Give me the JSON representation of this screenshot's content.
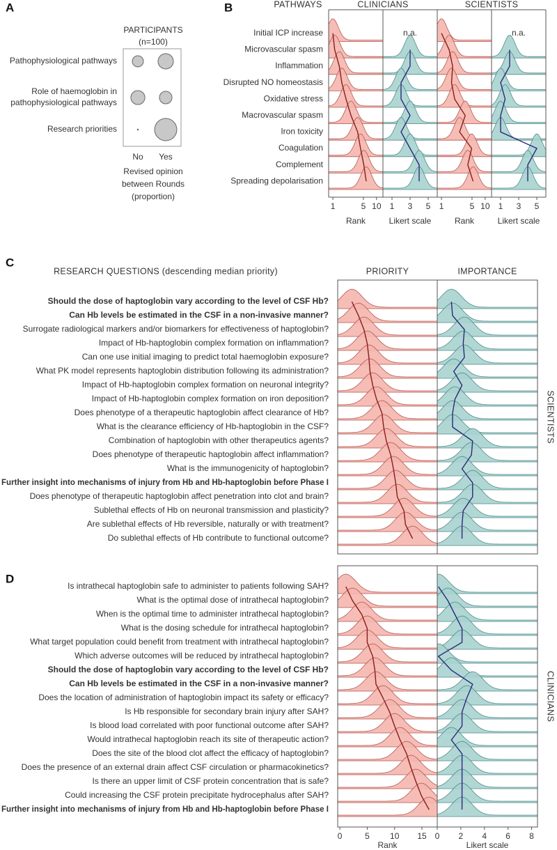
{
  "chart_data": [
    {
      "type": "bubble",
      "label": "A",
      "title": "PARTICIPANTS",
      "subtitle": "(n=100)",
      "categories": [
        "Pathophysiological pathways",
        "Role of haemoglobin in pathophysiological pathways",
        "Research priorities"
      ],
      "series": [
        {
          "name": "No",
          "values": [
            0.22,
            0.35,
            0.002
          ]
        },
        {
          "name": "Yes",
          "values": [
            0.42,
            0.28,
            0.88
          ]
        }
      ],
      "xlabel": "Revised opinion between Rounds (proportion)",
      "color": "#c8c8c8"
    },
    {
      "type": "ridgeline",
      "label": "B",
      "row_header": "PATHWAYS",
      "categories": [
        "Initial ICP increase",
        "Microvascular spasm",
        "Inflammation",
        "Disrupted NO homeostasis",
        "Oxidative stress",
        "Macrovascular spasm",
        "Iron toxicity",
        "Coagulation",
        "Complement",
        "Spreading depolarisation"
      ],
      "groups": [
        {
          "name": "CLINICIANS",
          "panels": [
            {
              "xlabel": "Rank",
              "log_scale": true,
              "xlim": [
                0.8,
                14
              ],
              "xticks": [
                1,
                5,
                10
              ],
              "color": "#f4b6ae",
              "line_color": "#8a1c1c",
              "medians": [
                1,
                1.1,
                1.4,
                1.6,
                2,
                2.6,
                3.7,
                4.3,
                5.1,
                5.8
              ]
            },
            {
              "xlabel": "Likert scale",
              "na_label": "n.a.",
              "xlim": [
                0,
                6
              ],
              "xticks": [
                1,
                3,
                5
              ],
              "color": "#a9d3d0",
              "line_color": "#2a2a78",
              "medians": [
                null,
                3,
                3,
                2,
                2,
                3,
                2,
                3,
                4,
                4
              ]
            }
          ]
        },
        {
          "name": "SCIENTISTS",
          "panels": [
            {
              "xlabel": "Rank",
              "log_scale": true,
              "xlim": [
                0.8,
                14
              ],
              "xticks": [
                1,
                5,
                10
              ],
              "color": "#f4b6ae",
              "line_color": "#8a1c1c",
              "medians": [
                1,
                1.5,
                1.8,
                1.7,
                2,
                3.5,
                2.6,
                4.9,
                4,
                5.3
              ]
            },
            {
              "xlabel": "Likert scale",
              "na_label": "n.a.",
              "xlim": [
                0,
                6
              ],
              "xticks": [
                1,
                3,
                5
              ],
              "color": "#a9d3d0",
              "line_color": "#2a2a78",
              "medians": [
                null,
                2,
                2,
                1,
                1.5,
                1,
                1,
                5,
                4,
                4
              ]
            }
          ]
        }
      ]
    },
    {
      "type": "ridgeline",
      "label": "C",
      "title": "RESEARCH QUESTIONS (descending median priority)",
      "side_label": "SCIENTISTS",
      "categories": [
        "Should the dose of haptoglobin vary according to the level of CSF Hb?",
        "Can Hb levels be estimated in the CSF in a non-invasive manner?",
        "Surrogate radiological markers and/or biomarkers for effectiveness of haptoglobin?",
        "Impact of Hb-haptoglobin complex formation on inflammation?",
        "Can one use initial imaging to predict total haemoglobin exposure?",
        "What PK model represents haptoglobin distribution following its administration?",
        "Impact of Hb-haptoglobin complex formation on neuronal integrity?",
        "Impact of Hb-haptoglobin complex formation on iron deposition?",
        "Does phenotype of a therapeutic haptoglobin affect clearance of Hb?",
        "What is the clearance efficiency of Hb-haptoglobin in the CSF?",
        "Combination of haptoglobin with other therapeutics agents?",
        "Does phenotype of therapeutic haptoglobin affect inflammation?",
        "What is the immunogenicity of haptoglobin?",
        "Further insight into mechanisms of injury from Hb and Hb-haptoglobin before Phase I",
        "Does phenotype of therapeutic haptoglobin affect penetration into clot and brain?",
        "Sublethal effects of Hb on neuronal transmission and plasticity?",
        "Are sublethal effects of Hb reversible, naturally or with treatment?",
        "Do sublethal effects of Hb contribute to functional outcome?"
      ],
      "bold_rows": [
        0,
        1,
        13
      ],
      "panels": [
        {
          "header": "PRIORITY",
          "xlim": [
            -0.4,
            17.8
          ],
          "color": "#f4b6ae",
          "line_color": "#8a1c1c",
          "medians": [
            2.2,
            3.4,
            4.4,
            5,
            5.3,
            5.5,
            6,
            6.7,
            7.7,
            8,
            8.5,
            9.3,
            9.8,
            10.2,
            10.5,
            11.7,
            12,
            13.3
          ]
        },
        {
          "header": "IMPORTANCE",
          "xlim": [
            0,
            8.5
          ],
          "color": "#a9d3d0",
          "line_color": "#2a2a78",
          "medians": [
            1.2,
            1.3,
            2.3,
            2.2,
            2.3,
            1.4,
            2.1,
            1.5,
            1.3,
            1.3,
            3,
            2.9,
            2.1,
            3,
            3,
            2.2,
            2.1,
            2.1
          ]
        }
      ]
    },
    {
      "type": "ridgeline",
      "label": "D",
      "side_label": "CLINICIANS",
      "categories": [
        "Is intrathecal haptoglobin safe to administer to patients following SAH?",
        "What is the optimal dose of intrathecal haptoglobin?",
        "When is the optimal time to administer intrathecal haptoglobin?",
        "What is the dosing schedule for intrathecal haptoglobin?",
        "What target population could benefit from treatment with intrathecal haptoglobin?",
        "Which adverse outcomes will be reduced by intrathecal haptoglobin?",
        "Should the dose of haptoglobin vary according to the level of CSF Hb?",
        "Can Hb levels be estimated in the CSF in a non-invasive manner?",
        "Does the location of administration of haptoglobin impact its safety or efficacy?",
        "Is Hb responsible for secondary brain injury after SAH?",
        "Is blood load correlated with poor functional outcome after SAH?",
        "Would intrathecal haptoglobin reach its site of therapeutic action?",
        "Does the site of the blood clot affect the efficacy of haptoglobin?",
        "Does the presence of an external drain affect CSF circulation or pharmacokinetics?",
        "Is there an upper limit of CSF protein concentration that is safe?",
        "Could increasing the CSF protein precipitate hydrocephalus after SAH?",
        "Further insight into mechanisms of injury from Hb and Hb-haptoglobin before Phase I"
      ],
      "bold_rows": [
        6,
        7,
        16
      ],
      "panels": [
        {
          "xlabel": "Rank",
          "xlim": [
            -0.4,
            17.8
          ],
          "xticks": [
            0,
            5,
            10,
            15
          ],
          "color": "#f4b6ae",
          "line_color": "#8a1c1c",
          "medians": [
            1.1,
            2.3,
            4,
            5,
            5,
            6,
            6.4,
            6.6,
            7.9,
            9.1,
            10,
            11,
            12.2,
            13,
            13.9,
            14.9,
            16.3
          ]
        },
        {
          "xlabel": "Likert scale",
          "xlim": [
            0,
            8.5
          ],
          "xticks": [
            0,
            2,
            4,
            6,
            8
          ],
          "color": "#a9d3d0",
          "line_color": "#2a2a78",
          "medians": [
            0.1,
            0.9,
            1.5,
            2.1,
            2.1,
            0.1,
            1.2,
            3,
            2.5,
            2.1,
            2.1,
            1.2,
            2.1,
            2.1,
            2.1,
            2.1,
            2.1
          ]
        }
      ]
    }
  ]
}
